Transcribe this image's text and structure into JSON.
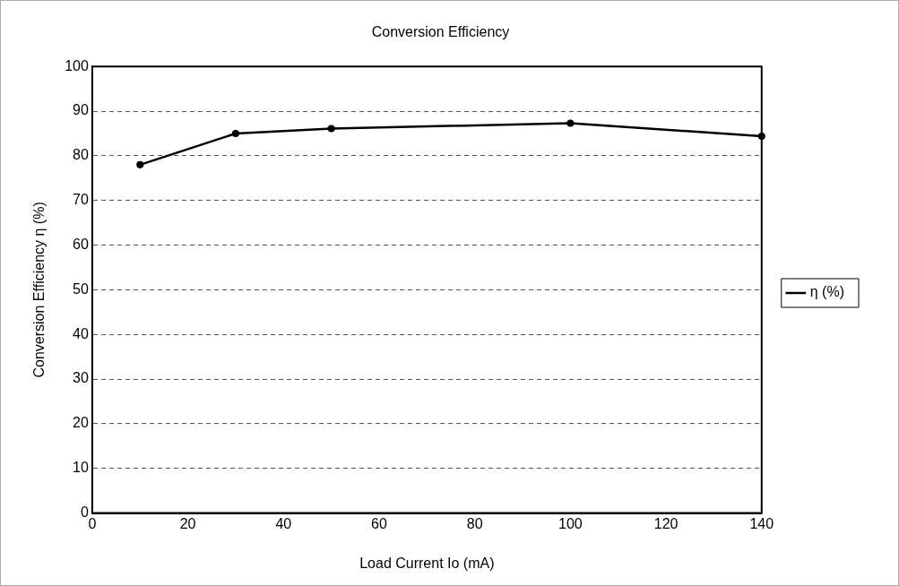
{
  "chart_data": {
    "type": "line",
    "title": "Conversion Efficiency",
    "xlabel": "Load Current Io (mA)",
    "ylabel": "Conversion Efficiency η (%)",
    "x": [
      10,
      30,
      50,
      100,
      140
    ],
    "series": [
      {
        "name": "η (%)",
        "color": "#000000",
        "values": [
          78,
          85,
          86.1,
          87.3,
          84.4
        ]
      }
    ],
    "xlim": [
      0,
      140
    ],
    "xticks": [
      0,
      20,
      40,
      60,
      80,
      100,
      120,
      140
    ],
    "ylim": [
      0,
      100
    ],
    "yticks": [
      0,
      10,
      20,
      30,
      40,
      50,
      60,
      70,
      80,
      90,
      100
    ],
    "grid": "y",
    "legend": "right",
    "marker": "circle",
    "line_style": "solid"
  }
}
